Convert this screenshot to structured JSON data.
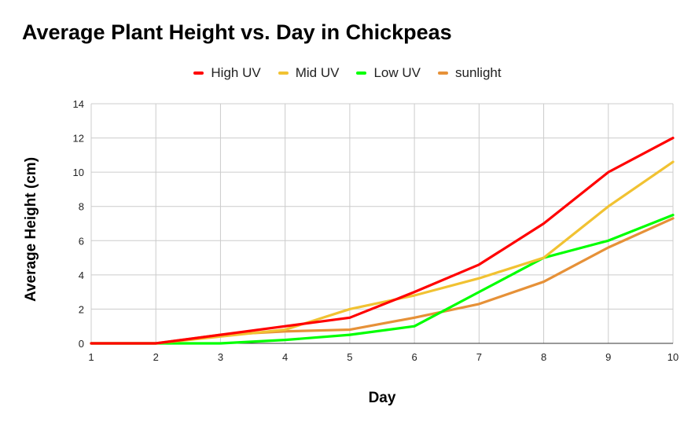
{
  "chart_data": {
    "type": "line",
    "title": "Average Plant Height vs. Day in Chickpeas",
    "xlabel": "Day",
    "ylabel": "Average Height (cm)",
    "x": [
      1,
      2,
      3,
      4,
      5,
      6,
      7,
      8,
      9,
      10
    ],
    "xlim": [
      1,
      10
    ],
    "ylim": [
      0,
      14
    ],
    "yticks": [
      0,
      2,
      4,
      6,
      8,
      10,
      12,
      14
    ],
    "grid": true,
    "legend_position": "top",
    "series": [
      {
        "name": "High UV",
        "color": "#ff0000",
        "values": [
          0,
          0,
          0.5,
          1,
          1.5,
          3,
          4.6,
          7,
          10,
          12
        ]
      },
      {
        "name": "Mid UV",
        "color": "#f1c232",
        "values": [
          0,
          0,
          0.4,
          0.8,
          2,
          2.8,
          3.8,
          5,
          8,
          10.6
        ]
      },
      {
        "name": "Low UV",
        "color": "#00ff00",
        "values": [
          0,
          0,
          0,
          0.2,
          0.5,
          1,
          3,
          5,
          6,
          7.5
        ]
      },
      {
        "name": "sunlight",
        "color": "#e69138",
        "values": [
          0,
          0,
          0.5,
          0.7,
          0.8,
          1.5,
          2.3,
          3.6,
          5.6,
          7.3
        ]
      }
    ]
  }
}
